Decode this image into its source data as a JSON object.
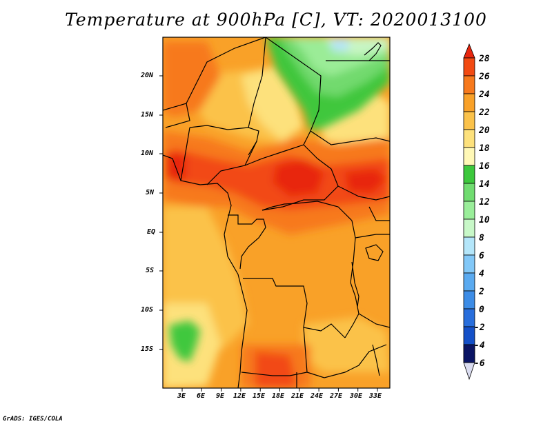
{
  "title": "Temperature at 900hPa [C], VT: 2020013100",
  "footer": "GrADS: IGES/COLA",
  "map": {
    "units": "C",
    "lat_ticks": [
      "20N",
      "15N",
      "10N",
      "5N",
      "EQ",
      "5S",
      "10S",
      "15S"
    ],
    "lon_ticks": [
      "3E",
      "6E",
      "9E",
      "12E",
      "15E",
      "18E",
      "21E",
      "24E",
      "27E",
      "30E",
      "33E"
    ]
  },
  "colorbar": {
    "labels": [
      "28",
      "26",
      "24",
      "22",
      "20",
      "18",
      "16",
      "14",
      "12",
      "10",
      "8",
      "6",
      "4",
      "2",
      "0",
      "-2",
      "-4",
      "-6"
    ],
    "colors": {
      "gt28": "#e8260e",
      "c26": "#f24a12",
      "c24": "#f7791c",
      "c22": "#f9a128",
      "c20": "#fbc24a",
      "c18": "#fde17c",
      "c16": "#fff8b6",
      "c14": "#3cc83c",
      "c12": "#70dc70",
      "c10": "#9aee9a",
      "c8": "#c8f8c8",
      "c6": "#b4e6fa",
      "c4": "#82c8f8",
      "c2": "#5aaaf0",
      "c0": "#3c8ce6",
      "cm2": "#286edc",
      "cm4": "#1450c8",
      "cm6": "#0a32a0",
      "lt_m6": "#0a1464",
      "below": "#dadcf0"
    }
  }
}
